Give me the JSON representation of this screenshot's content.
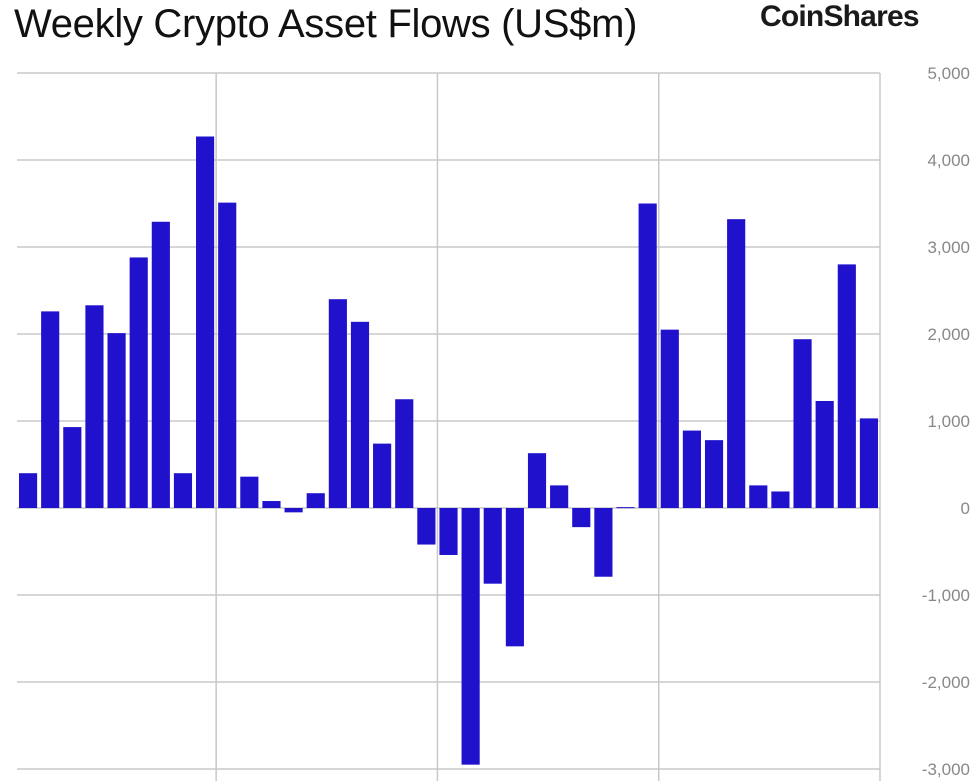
{
  "header": {
    "title": "Weekly Crypto Asset Flows (US$m)",
    "brand": "CoinShares"
  },
  "colors": {
    "bar": "#1f11cc",
    "grid": "#c8c8c8",
    "axis_text": "#888888"
  },
  "chart_data": {
    "type": "bar",
    "title": "Weekly Crypto Asset Flows (US$m)",
    "xlabel": "",
    "ylabel": "",
    "ylim": [
      -3000,
      5000
    ],
    "yticks": [
      5000,
      4000,
      3000,
      2000,
      1000,
      0,
      -1000,
      -2000,
      -3000
    ],
    "ytick_labels": [
      "5,000",
      "4,000",
      "3,000",
      "2,000",
      "1,000",
      "0",
      "-1,000",
      "-2,000",
      "-3,000"
    ],
    "y_axis_position": "right",
    "grid": true,
    "legend": "none",
    "vertical_gridlines_after_bar": [
      9,
      19,
      29
    ],
    "values": [
      400,
      2260,
      930,
      2330,
      2010,
      2880,
      3290,
      400,
      4270,
      3510,
      360,
      80,
      -50,
      170,
      2400,
      2140,
      740,
      1250,
      -420,
      -540,
      -2950,
      -870,
      -1590,
      630,
      260,
      -220,
      -790,
      10,
      3500,
      2050,
      890,
      780,
      3320,
      260,
      190,
      1940,
      1230,
      2800,
      1030
    ]
  }
}
